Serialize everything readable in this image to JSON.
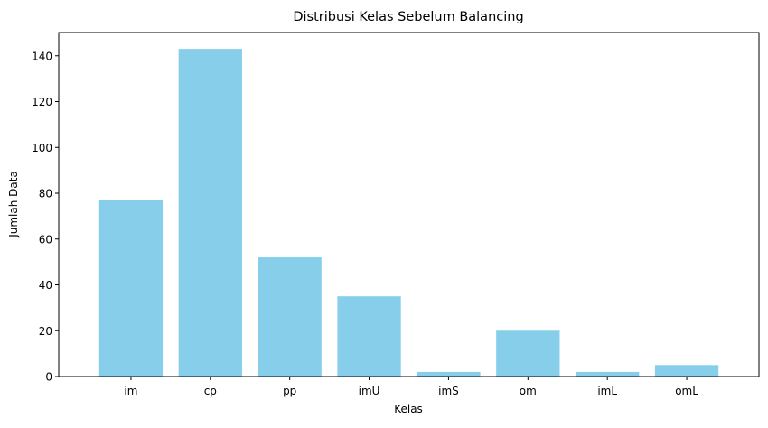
{
  "chart_data": {
    "type": "bar",
    "title": "Distribusi Kelas Sebelum Balancing",
    "xlabel": "Kelas",
    "ylabel": "Jumlah Data",
    "categories": [
      "im",
      "cp",
      "pp",
      "imU",
      "imS",
      "om",
      "imL",
      "omL"
    ],
    "values": [
      77,
      143,
      52,
      35,
      2,
      20,
      2,
      5
    ],
    "ylim": [
      0,
      150.15
    ],
    "yticks": [
      0,
      20,
      40,
      60,
      80,
      100,
      120,
      140
    ],
    "bar_color": "#87CEEB",
    "grid": false,
    "legend": "none"
  }
}
